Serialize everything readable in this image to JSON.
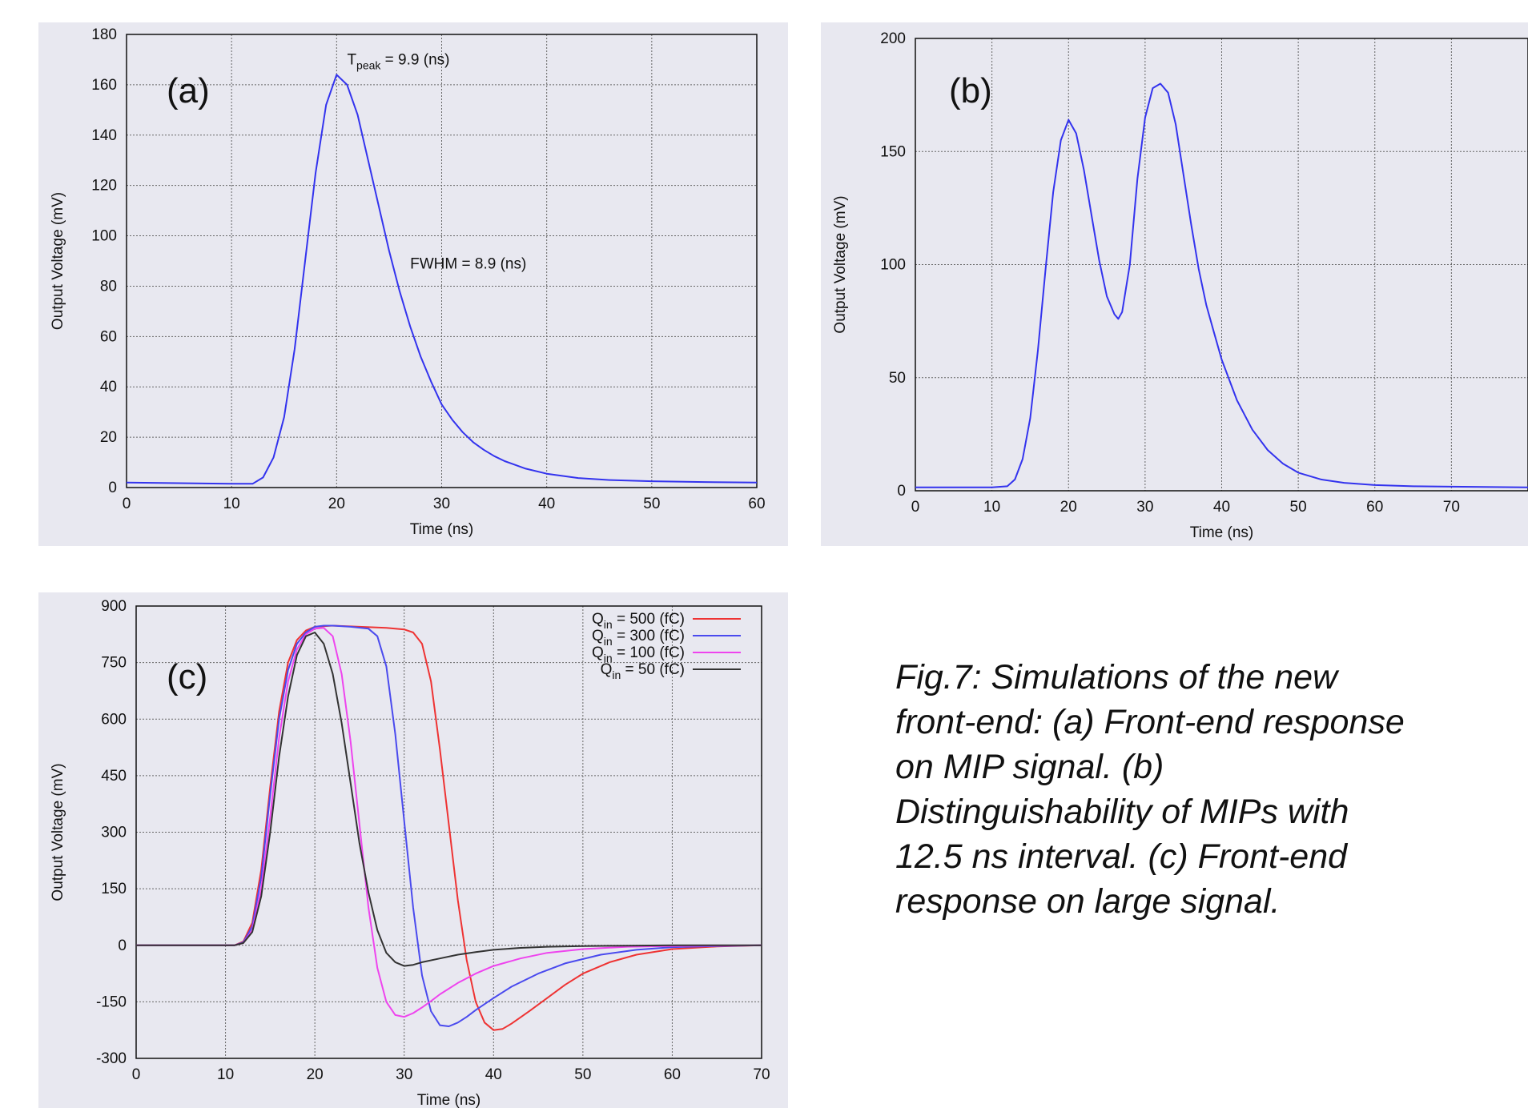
{
  "chart_data": [
    {
      "type": "line",
      "panel_label": "(a)",
      "xlabel": "Time (ns)",
      "ylabel": "Output Voltage (mV)",
      "xlim": [
        0,
        60
      ],
      "ylim": [
        0,
        180
      ],
      "xticks": [
        0,
        10,
        20,
        30,
        40,
        50,
        60
      ],
      "yticks": [
        0,
        20,
        40,
        60,
        80,
        100,
        120,
        140,
        160,
        180
      ],
      "grid": true,
      "annotations": [
        {
          "text": "T",
          "sub": "peak",
          "tail": " = 9.9 (ns)",
          "x": 21,
          "y": 168
        },
        {
          "text": "FWHM = 8.9 (ns)",
          "sub": "",
          "tail": "",
          "x": 27,
          "y": 87
        }
      ],
      "series": [
        {
          "color": "#3333ee",
          "x": [
            0,
            10,
            12,
            13,
            14,
            15,
            16,
            17,
            18,
            19,
            20,
            21,
            22,
            23,
            24,
            25,
            26,
            27,
            28,
            29,
            30,
            31,
            32,
            33,
            34,
            35,
            36,
            38,
            40,
            43,
            46,
            50,
            55,
            60
          ],
          "y": [
            2,
            1.5,
            1.5,
            4,
            12,
            28,
            55,
            90,
            125,
            152,
            164,
            160,
            148,
            130,
            112,
            94,
            78,
            64,
            52,
            42,
            33,
            27,
            22,
            18,
            15,
            12.5,
            10.5,
            7.5,
            5.5,
            3.8,
            3,
            2.5,
            2.2,
            2
          ]
        }
      ]
    },
    {
      "type": "line",
      "panel_label": "(b)",
      "xlabel": "Time (ns)",
      "ylabel": "Output Voltage (mV)",
      "xlim": [
        0,
        80
      ],
      "ylim": [
        0,
        200
      ],
      "xticks": [
        0,
        10,
        20,
        30,
        40,
        50,
        60,
        70
      ],
      "yticks": [
        0,
        50,
        100,
        150,
        200
      ],
      "grid": true,
      "series": [
        {
          "color": "#3333ee",
          "x": [
            0,
            10,
            12,
            13,
            14,
            15,
            16,
            17,
            18,
            19,
            20,
            21,
            22,
            23,
            24,
            25,
            26,
            26.5,
            27,
            28,
            29,
            30,
            31,
            32,
            33,
            34,
            35,
            36,
            37,
            38,
            39,
            40,
            42,
            44,
            46,
            48,
            50,
            53,
            56,
            60,
            65,
            70,
            80
          ],
          "y": [
            1.5,
            1.5,
            2,
            5,
            14,
            32,
            62,
            98,
            132,
            155,
            164,
            158,
            142,
            122,
            102,
            86,
            78,
            76,
            79,
            100,
            138,
            165,
            178,
            180,
            176,
            162,
            140,
            118,
            98,
            82,
            70,
            58,
            40,
            27,
            18,
            12,
            8,
            5,
            3.5,
            2.5,
            2,
            1.8,
            1.5
          ]
        }
      ]
    },
    {
      "type": "line",
      "panel_label": "(c)",
      "xlabel": "Time (ns)",
      "ylabel": "Output Voltage (mV)",
      "xlim": [
        0,
        70
      ],
      "ylim": [
        -300,
        900
      ],
      "xticks": [
        0,
        10,
        20,
        30,
        40,
        50,
        60,
        70
      ],
      "yticks": [
        -300,
        -150,
        0,
        150,
        300,
        450,
        600,
        750,
        900
      ],
      "grid": true,
      "legend_position": "top-right",
      "series": [
        {
          "name": "= 500 (fC)",
          "name_main": "Q",
          "name_sub": "in",
          "name_tail": " = 500 (fC)",
          "color": "#ee3333",
          "x": [
            0,
            11,
            12,
            13,
            14,
            15,
            16,
            17,
            18,
            19,
            20,
            22,
            25,
            28,
            30,
            31,
            32,
            33,
            34,
            35,
            36,
            37,
            38,
            39,
            40,
            41,
            42,
            44,
            46,
            48,
            50,
            53,
            56,
            60,
            65,
            70
          ],
          "y": [
            0,
            0,
            10,
            60,
            200,
            420,
            620,
            750,
            810,
            835,
            845,
            848,
            845,
            842,
            838,
            830,
            800,
            700,
            520,
            320,
            120,
            -40,
            -150,
            -205,
            -225,
            -222,
            -208,
            -175,
            -140,
            -105,
            -75,
            -45,
            -25,
            -10,
            -3,
            0
          ]
        },
        {
          "name": "= 300 (fC)",
          "name_main": "Q",
          "name_sub": "in",
          "name_tail": " = 300 (fC)",
          "color": "#4a4aee",
          "x": [
            0,
            11,
            12,
            13,
            14,
            15,
            16,
            17,
            18,
            19,
            20,
            21,
            22,
            24,
            26,
            27,
            28,
            29,
            30,
            31,
            32,
            33,
            34,
            35,
            36,
            37,
            38,
            40,
            42,
            45,
            48,
            52,
            56,
            60,
            65,
            70
          ],
          "y": [
            0,
            0,
            8,
            50,
            180,
            400,
            600,
            730,
            800,
            830,
            845,
            848,
            848,
            845,
            840,
            820,
            740,
            560,
            330,
            100,
            -80,
            -175,
            -212,
            -215,
            -205,
            -190,
            -172,
            -140,
            -110,
            -75,
            -48,
            -25,
            -12,
            -5,
            -2,
            0
          ]
        },
        {
          "name": "= 100 (fC)",
          "name_main": "Q",
          "name_sub": "in",
          "name_tail": " = 100 (fC)",
          "color": "#ee44ee",
          "x": [
            0,
            11,
            12,
            13,
            14,
            15,
            16,
            17,
            18,
            19,
            20,
            21,
            22,
            23,
            24,
            25,
            26,
            27,
            28,
            29,
            30,
            31,
            32,
            33,
            34,
            36,
            38,
            40,
            43,
            46,
            50,
            55,
            60,
            70
          ],
          "y": [
            0,
            0,
            6,
            40,
            150,
            340,
            550,
            700,
            785,
            825,
            840,
            842,
            820,
            720,
            540,
            320,
            100,
            -60,
            -150,
            -185,
            -190,
            -180,
            -165,
            -148,
            -130,
            -100,
            -75,
            -55,
            -35,
            -20,
            -10,
            -4,
            -2,
            0
          ]
        },
        {
          "name": "= 50 (fC)",
          "name_main": "Q",
          "name_sub": "in",
          "name_tail": " = 50 (fC)",
          "color": "#333333",
          "x": [
            0,
            11,
            12,
            13,
            14,
            15,
            16,
            17,
            18,
            19,
            20,
            21,
            22,
            23,
            24,
            25,
            26,
            27,
            28,
            29,
            30,
            31,
            32,
            34,
            36,
            38,
            40,
            43,
            46,
            50,
            55,
            60,
            70
          ],
          "y": [
            0,
            0,
            6,
            35,
            130,
            300,
            500,
            660,
            770,
            820,
            830,
            800,
            720,
            590,
            430,
            270,
            140,
            40,
            -20,
            -45,
            -55,
            -52,
            -45,
            -35,
            -25,
            -18,
            -12,
            -7,
            -4,
            -2,
            -1,
            0,
            0
          ]
        }
      ]
    }
  ],
  "caption": "Fig.7:  Simulations of the new front-end: (a) Front-end response on MIP signal. (b) Distinguishability of MIPs with 12.5 ns interval. (c) Front-end response on large signal."
}
